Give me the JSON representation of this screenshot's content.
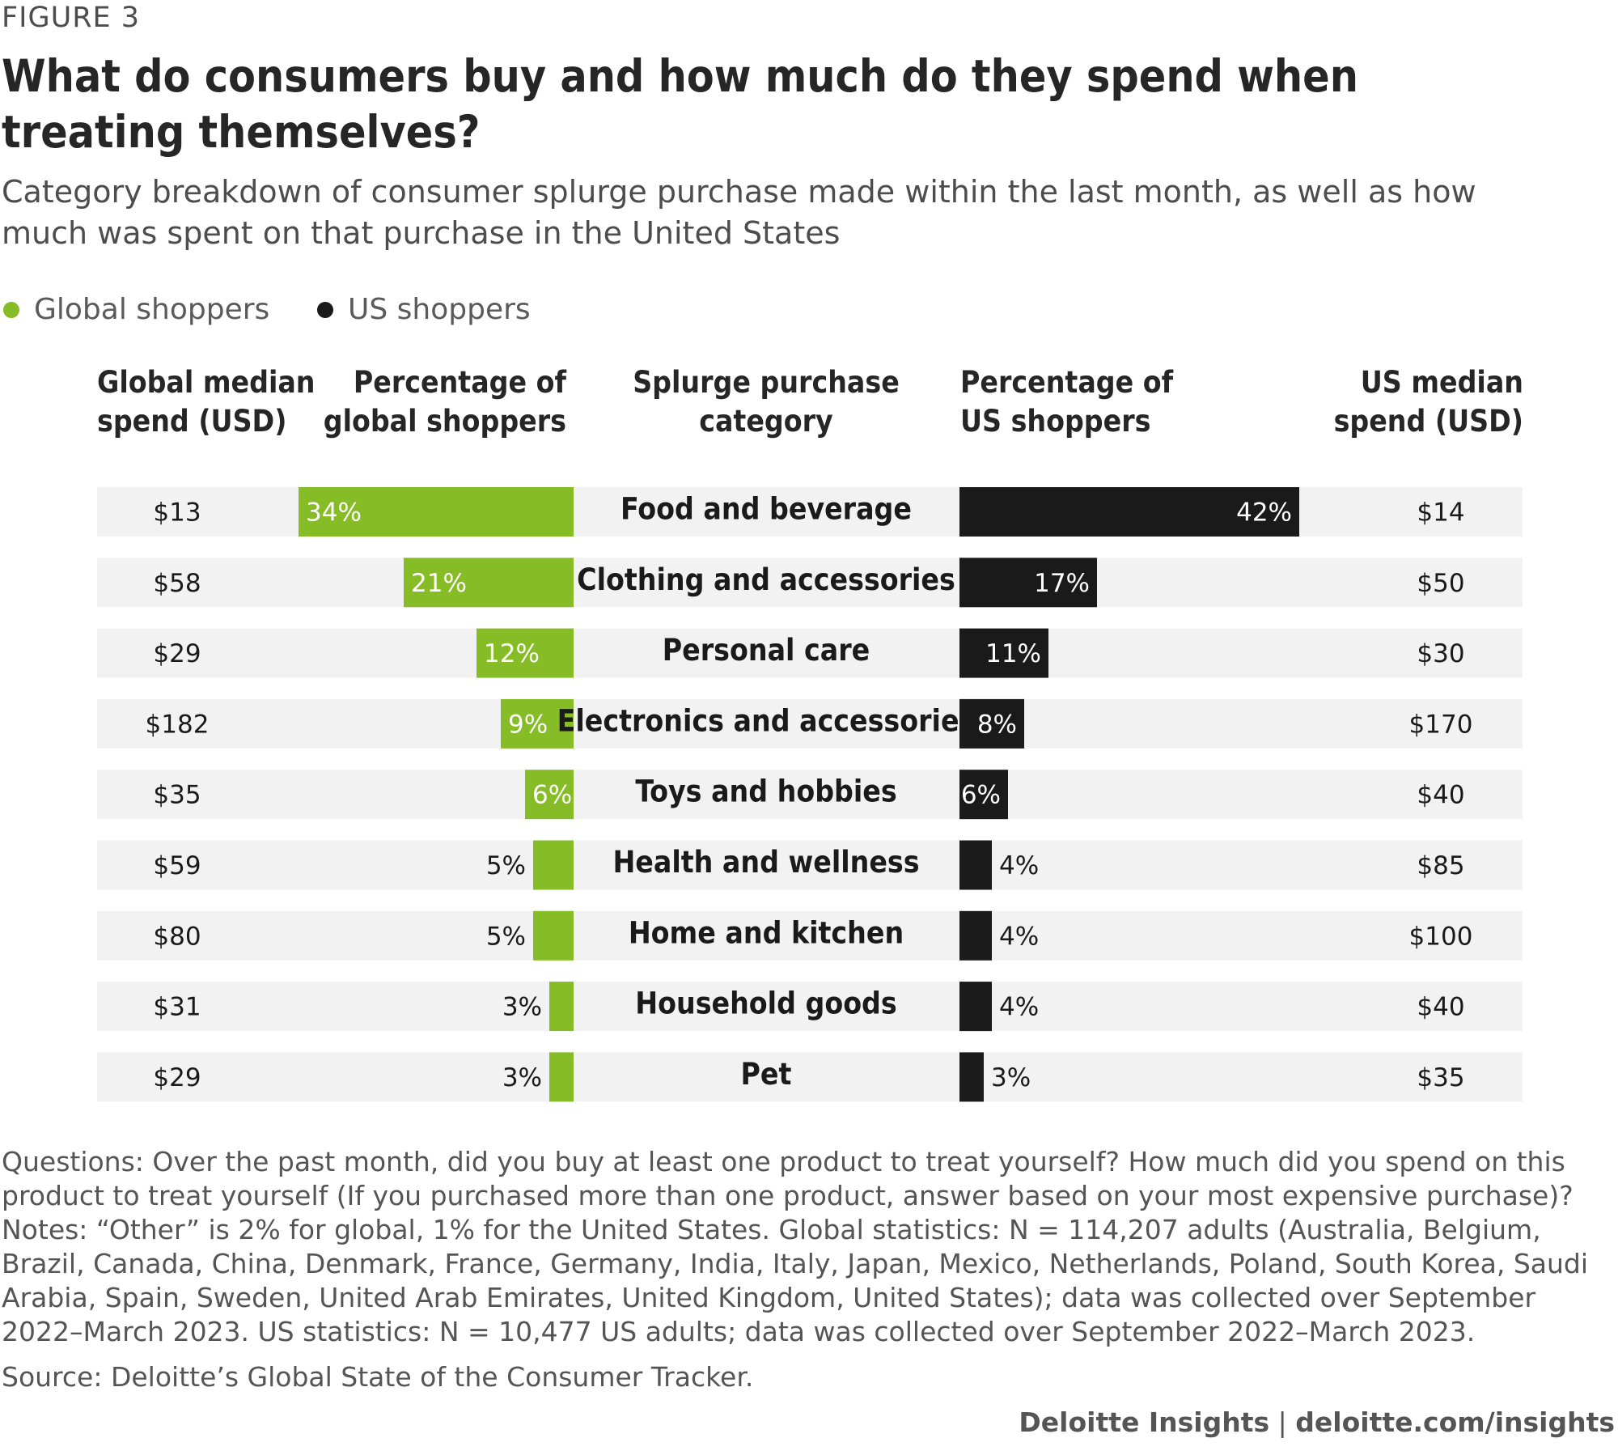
{
  "figure_label": "FIGURE 3",
  "title": "What do consumers buy and how much do they spend when treating themselves?",
  "subtitle": "Category breakdown of consumer splurge purchase made within the last month, as well as how much was spent on that purchase in the United States",
  "colors": {
    "global": "#86bc25",
    "us": "#1a1a1a",
    "row_bg": "#f2f2f2"
  },
  "chart_data": {
    "type": "table",
    "title": "What do consumers buy and how much do they spend when treating themselves?",
    "legend": [
      "Global shoppers",
      "US shoppers"
    ],
    "legend_placement": "top-left",
    "columns": [
      "Global median spend (USD)",
      "Percentage of global shoppers",
      "Splurge purchase category",
      "Percentage of US shoppers",
      "US median spend (USD)"
    ],
    "column_lines": [
      [
        "Global median",
        "spend (USD)"
      ],
      [
        "Percentage of",
        "global shoppers"
      ],
      [
        "Splurge purchase",
        "category"
      ],
      [
        "Percentage of",
        "US shoppers"
      ],
      [
        "US median",
        "spend (USD)"
      ]
    ],
    "categories": [
      "Food and beverage",
      "Clothing and accessories",
      "Personal care",
      "Electronics and accessories",
      "Toys and hobbies",
      "Health and wellness",
      "Home and kitchen",
      "Household goods",
      "Pet"
    ],
    "global_median_spend": [
      "$13",
      "$58",
      "$29",
      "$182",
      "$35",
      "$59",
      "$80",
      "$31",
      "$29"
    ],
    "us_median_spend": [
      "$14",
      "$50",
      "$30",
      "$170",
      "$40",
      "$85",
      "$100",
      "$40",
      "$35"
    ],
    "series": [
      {
        "name": "Global shoppers",
        "values": [
          34,
          21,
          12,
          9,
          6,
          5,
          5,
          3,
          3
        ]
      },
      {
        "name": "US shoppers",
        "values": [
          42,
          17,
          11,
          8,
          6,
          4,
          4,
          4,
          3
        ]
      }
    ],
    "value_suffix": "%"
  },
  "notes": [
    "Questions: Over the past month, did you buy at least one product to treat yourself? How much did you spend on this product to treat yourself (If you purchased more than one product, answer based on your most expensive purchase)?",
    "Notes: “Other” is 2% for global, 1% for the United States. Global statistics: N = 114,207 adults (Australia, Belgium, Brazil, Canada, China, Denmark, France, Germany, India, Italy, Japan, Mexico, Netherlands, Poland, South Korea, Saudi Arabia, Spain, Sweden, United Arab Emirates, United Kingdom, United States); data was collected over September 2022–March 2023. US statistics: N = 10,477 US adults; data was collected over September 2022–March 2023."
  ],
  "source": "Source: Deloitte’s Global State of the Consumer Tracker.",
  "footer": {
    "brand": "Deloitte Insights",
    "separator": "|",
    "url": "deloitte.com/insights"
  }
}
